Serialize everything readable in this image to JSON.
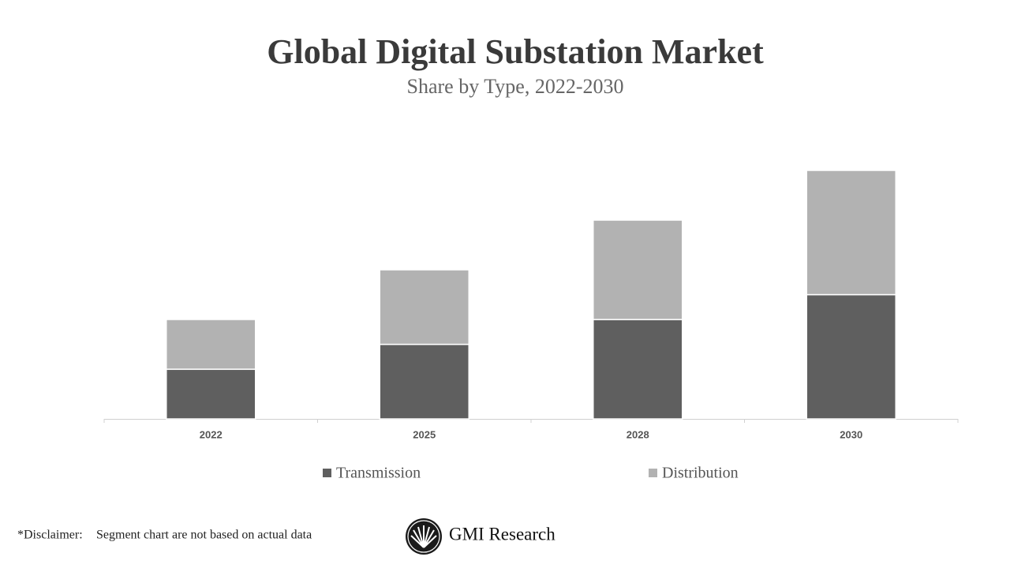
{
  "chart_data": {
    "type": "stacked-bar",
    "title": "Global Digital Substation Market",
    "subtitle": "Share by Type, 2022-2030",
    "categories": [
      "2022",
      "2025",
      "2028",
      "2030"
    ],
    "series": [
      {
        "name": "Transmission",
        "color": "#5f5f5f",
        "values": [
          2,
          3,
          4,
          5
        ]
      },
      {
        "name": "Distribution",
        "color": "#b2b2b2",
        "values": [
          2,
          3,
          4,
          5
        ]
      }
    ],
    "legend": "bottom"
  },
  "footer": {
    "disclaimer_label": "*Disclaimer:",
    "disclaimer": "Segment chart are not based on actual data",
    "logo": "GMI Research"
  }
}
